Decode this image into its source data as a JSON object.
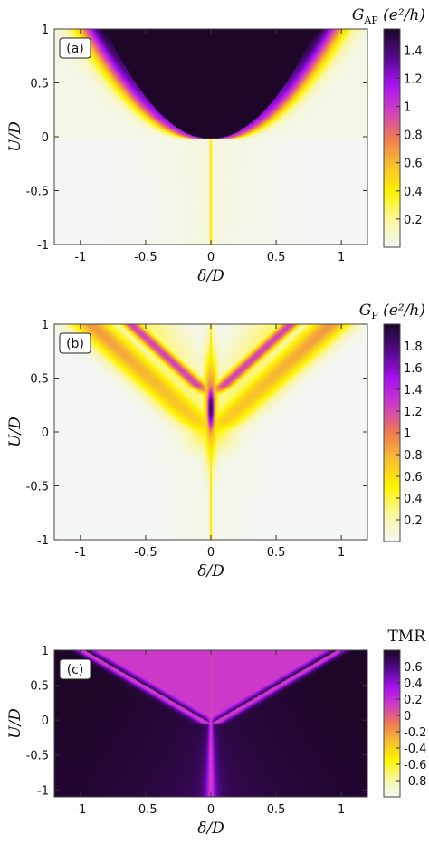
{
  "chart_data": [
    {
      "type": "heatmap",
      "panel_label": "(a)",
      "colorbar_title": {
        "main": "G",
        "sub": "AP",
        "units": "(e²/h)"
      },
      "xlabel": "δ/D",
      "ylabel": "U/D",
      "xlim": [
        -1.2,
        1.2
      ],
      "ylim": [
        -1,
        1
      ],
      "xticks": [
        -1,
        -0.5,
        0,
        0.5,
        1
      ],
      "yticks": [
        -1,
        -0.5,
        0,
        0.5,
        1
      ],
      "xticklabels": [
        "-1",
        "-0.5",
        "0",
        "0.5",
        "1"
      ],
      "yticklabels": [
        "-1",
        "-0.5",
        "0",
        "0.5",
        "1"
      ],
      "colorbar_range": [
        0,
        1.55
      ],
      "colorbar_ticks": [
        0.2,
        0.4,
        0.6,
        0.8,
        1,
        1.2,
        1.4
      ],
      "colorbar_ticklabels": [
        "0.2",
        "0.4",
        "0.6",
        "0.8",
        "1",
        "1.2",
        "1.4"
      ],
      "colormap": [
        "#f3f6f4",
        "#fbf6a0",
        "#fff400",
        "#f7c02d",
        "#ee7b52",
        "#d13ec4",
        "#a610f2",
        "#54098b",
        "#1d0628"
      ]
    },
    {
      "type": "heatmap",
      "panel_label": "(b)",
      "colorbar_title": {
        "main": "G",
        "sub": "P",
        "units": "(e²/h)"
      },
      "xlabel": "δ/D",
      "ylabel": "U/D",
      "xlim": [
        -1.2,
        1.2
      ],
      "ylim": [
        -1,
        1
      ],
      "xticks": [
        -1,
        -0.5,
        0,
        0.5,
        1
      ],
      "yticks": [
        -1,
        -0.5,
        0,
        0.5,
        1
      ],
      "xticklabels": [
        "-1",
        "-0.5",
        "0",
        "0.5",
        "1"
      ],
      "yticklabels": [
        "-1",
        "-0.5",
        "0",
        "0.5",
        "1"
      ],
      "colorbar_range": [
        0,
        2
      ],
      "colorbar_ticks": [
        0.2,
        0.4,
        0.6,
        0.8,
        1,
        1.2,
        1.4,
        1.6,
        1.8
      ],
      "colorbar_ticklabels": [
        "0.2",
        "0.4",
        "0.6",
        "0.8",
        "1",
        "1.2",
        "1.4",
        "1.6",
        "1.8"
      ],
      "colormap": [
        "#f3f6f4",
        "#fbf6a0",
        "#fff400",
        "#f7c02d",
        "#ee7b52",
        "#d13ec4",
        "#a610f2",
        "#54098b",
        "#1d0628"
      ]
    },
    {
      "type": "heatmap",
      "panel_label": "(c)",
      "colorbar_title": {
        "main": "TMR",
        "sub": "",
        "units": ""
      },
      "xlabel": "δ/D",
      "ylabel": "U/D",
      "xlim": [
        -1.2,
        1.2
      ],
      "ylim": [
        -1.1,
        1
      ],
      "xticks": [
        -1,
        -0.5,
        0,
        0.5,
        1
      ],
      "yticks": [
        -1,
        -0.5,
        0,
        0.5,
        1
      ],
      "xticklabels": [
        "-1",
        "-0.5",
        "0",
        "0.5",
        "1"
      ],
      "yticklabels": [
        "-1",
        "-0.5",
        "0",
        "0.5",
        "1"
      ],
      "colorbar_range": [
        -1,
        0.8
      ],
      "colorbar_ticks": [
        -0.8,
        -0.6,
        -0.4,
        -0.2,
        0,
        0.2,
        0.4,
        0.6
      ],
      "colorbar_ticklabels": [
        "-0.8",
        "-0.6",
        "-0.4",
        "-0.2",
        "0",
        "0.2",
        "0.4",
        "0.6"
      ],
      "colormap": [
        "#f3f6f4",
        "#fbf6a0",
        "#fff400",
        "#f7c02d",
        "#ee7b52",
        "#d13ec4",
        "#a610f2",
        "#54098b",
        "#1d0628"
      ]
    }
  ]
}
